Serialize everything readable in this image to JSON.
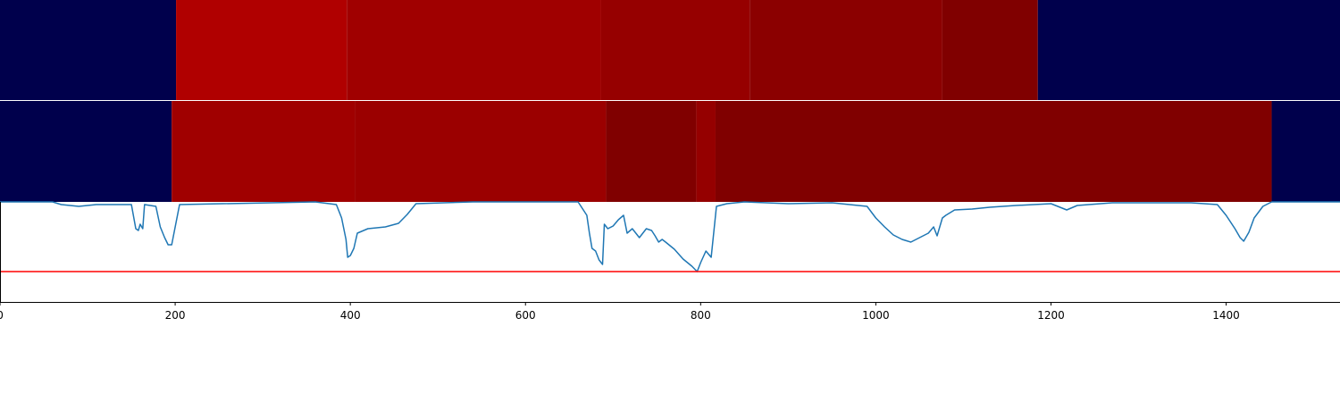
{
  "chart_data": {
    "type": "heatmap",
    "xlim": [
      0,
      1530
    ],
    "x_ticks": [
      "0",
      "200",
      "400",
      "600",
      "800",
      "1000",
      "1200",
      "1400"
    ],
    "x_tick_values": [
      0,
      200,
      400,
      600,
      800,
      1000,
      1200,
      1400
    ],
    "colormap": "seismic",
    "colors": {
      "background_segment": "#00004c",
      "divider": "#ffffff",
      "line": "#1f77b4",
      "threshold": "#ff0000",
      "axis": "#000000"
    },
    "tracks": [
      {
        "segments": [
          {
            "start": 0,
            "end": 201,
            "color": "#00004c"
          },
          {
            "start": 201,
            "end": 396,
            "color": "#b00000"
          },
          {
            "start": 396,
            "end": 686,
            "color": "#a00000"
          },
          {
            "start": 686,
            "end": 856,
            "color": "#960000"
          },
          {
            "start": 856,
            "end": 1076,
            "color": "#8b0000"
          },
          {
            "start": 1076,
            "end": 1185,
            "color": "#800000"
          },
          {
            "start": 1185,
            "end": 1530,
            "color": "#00004c"
          }
        ]
      },
      {
        "segments": [
          {
            "start": 0,
            "end": 196,
            "color": "#00004c"
          },
          {
            "start": 196,
            "end": 405,
            "color": "#a00000"
          },
          {
            "start": 405,
            "end": 692,
            "color": "#9b0000"
          },
          {
            "start": 692,
            "end": 795,
            "color": "#800000"
          },
          {
            "start": 795,
            "end": 817,
            "color": "#950000"
          },
          {
            "start": 817,
            "end": 1452,
            "color": "#800000"
          },
          {
            "start": 1452,
            "end": 1530,
            "color": "#00004c"
          }
        ]
      }
    ],
    "line_panel": {
      "ylim": [
        -0.12,
        1.0
      ],
      "threshold": 0.22,
      "series": [
        {
          "x": [
            0,
            60,
            70,
            90,
            100,
            110,
            150,
            155,
            158,
            160,
            163,
            165,
            178,
            183,
            188,
            192,
            196,
            205,
            360,
            384,
            390,
            395,
            397,
            400,
            404,
            408,
            420,
            440,
            455,
            465,
            475,
            540,
            600,
            660,
            670,
            673,
            676,
            680,
            684,
            688,
            690,
            694,
            700,
            706,
            712,
            716,
            722,
            730,
            738,
            744,
            748,
            752,
            756,
            760,
            770,
            780,
            790,
            796,
            800,
            806,
            812,
            818,
            830,
            850,
            900,
            950,
            990,
            1000,
            1010,
            1020,
            1030,
            1040,
            1050,
            1060,
            1066,
            1070,
            1076,
            1080,
            1090,
            1110,
            1130,
            1160,
            1200,
            1218,
            1230,
            1270,
            1320,
            1360,
            1390,
            1400,
            1410,
            1416,
            1420,
            1426,
            1432,
            1442,
            1452,
            1530
          ],
          "y": [
            1.0,
            1.0,
            0.97,
            0.95,
            0.96,
            0.97,
            0.97,
            0.7,
            0.68,
            0.75,
            0.7,
            0.97,
            0.95,
            0.72,
            0.6,
            0.52,
            0.52,
            0.97,
            1.0,
            0.97,
            0.82,
            0.58,
            0.38,
            0.4,
            0.48,
            0.65,
            0.7,
            0.72,
            0.76,
            0.86,
            0.98,
            1.0,
            1.0,
            1.0,
            0.85,
            0.65,
            0.48,
            0.45,
            0.35,
            0.3,
            0.75,
            0.7,
            0.73,
            0.8,
            0.85,
            0.65,
            0.7,
            0.6,
            0.7,
            0.68,
            0.62,
            0.55,
            0.58,
            0.55,
            0.47,
            0.36,
            0.28,
            0.22,
            0.32,
            0.45,
            0.38,
            0.95,
            0.98,
            1.0,
            0.98,
            0.99,
            0.95,
            0.82,
            0.72,
            0.63,
            0.58,
            0.55,
            0.6,
            0.65,
            0.72,
            0.62,
            0.82,
            0.85,
            0.91,
            0.92,
            0.94,
            0.96,
            0.98,
            0.91,
            0.96,
            0.99,
            0.99,
            0.99,
            0.97,
            0.85,
            0.7,
            0.6,
            0.56,
            0.66,
            0.82,
            0.95,
            1.0,
            1.0
          ]
        }
      ]
    },
    "grid": false
  }
}
